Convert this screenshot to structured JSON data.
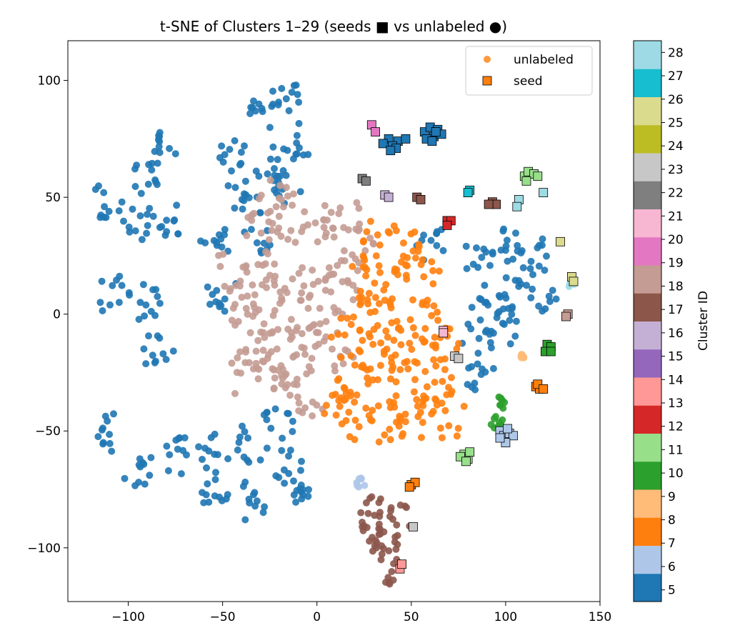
{
  "chart_data": {
    "type": "scatter",
    "title": "t-SNE of Clusters 1–29 (seeds ■ vs unlabeled ●)",
    "xlabel": "",
    "ylabel": "",
    "xlim": [
      -132,
      150
    ],
    "ylim": [
      -123,
      117
    ],
    "xticks": [
      -100,
      -50,
      0,
      50,
      100,
      150
    ],
    "xtick_labels": [
      "−100",
      "−50",
      "0",
      "50",
      "100",
      "150"
    ],
    "yticks": [
      -100,
      -50,
      0,
      50,
      100
    ],
    "ytick_labels": [
      "−100",
      "−50",
      "0",
      "50",
      "100"
    ],
    "grid": false,
    "legend": {
      "placement": "top-right",
      "entries": [
        {
          "label": "unlabeled",
          "marker": "circle",
          "color": "#ff7f0e"
        },
        {
          "label": "seed",
          "marker": "square",
          "color": "#ff7f0e"
        }
      ]
    },
    "colorbar": {
      "label": "Cluster ID",
      "vmin": 4.5,
      "vmax": 28.5,
      "ticks": [
        5,
        6,
        7,
        8,
        9,
        10,
        11,
        12,
        13,
        14,
        15,
        16,
        17,
        18,
        19,
        20,
        21,
        22,
        23,
        24,
        25,
        26,
        27,
        28
      ],
      "tick_labels": [
        "5",
        "6",
        "7",
        "8",
        "9",
        "10",
        "11",
        "12",
        "13",
        "14",
        "15",
        "16",
        "17",
        "18",
        "19",
        "20",
        "21",
        "22",
        "23",
        "24",
        "25",
        "26",
        "27",
        "28"
      ],
      "colors": [
        "#1f77b4",
        "#aec7e8",
        "#ff7f0e",
        "#ffbb78",
        "#2ca02c",
        "#98df8a",
        "#d62728",
        "#ff9896",
        "#9467bd",
        "#c5b0d5",
        "#8c564b",
        "#c49c94",
        "#e377c2",
        "#f7b6d2",
        "#7f7f7f",
        "#c7c7c7",
        "#bcbd22",
        "#dbdb8d",
        "#17becf",
        "#9edae5"
      ],
      "breaks": [
        4.5,
        5.7,
        6.9,
        8.1,
        9.3,
        10.5,
        11.7,
        12.9,
        14.1,
        15.3,
        16.5,
        17.7,
        18.9,
        20.1,
        21.3,
        22.5,
        23.7,
        24.9,
        26.1,
        27.3,
        28.5
      ]
    },
    "unlabeled_groups": [
      {
        "color": "#1f77b4",
        "spread": 9,
        "centers": [
          [
            -112,
            48
          ],
          [
            -92,
            60
          ],
          [
            -80,
            72
          ],
          [
            -95,
            40
          ],
          [
            -80,
            40
          ],
          [
            -108,
            8
          ],
          [
            -92,
            5
          ],
          [
            -85,
            -15
          ],
          [
            -110,
            -50
          ],
          [
            -95,
            -65
          ],
          [
            -75,
            -60
          ],
          [
            -55,
            -60
          ],
          [
            -35,
            -55
          ],
          [
            -55,
            -75
          ],
          [
            -35,
            -80
          ],
          [
            -15,
            -65
          ],
          [
            -10,
            -72
          ],
          [
            -55,
            30
          ],
          [
            -50,
            10
          ],
          [
            -40,
            50
          ],
          [
            -30,
            35
          ],
          [
            -25,
            65
          ],
          [
            -15,
            55
          ],
          [
            -30,
            85
          ],
          [
            -15,
            95
          ],
          [
            -10,
            75
          ],
          [
            -45,
            70
          ],
          [
            -20,
            -45
          ],
          [
            85,
            25
          ],
          [
            100,
            30
          ],
          [
            115,
            25
          ],
          [
            90,
            5
          ],
          [
            105,
            10
          ],
          [
            120,
            10
          ],
          [
            85,
            -10
          ],
          [
            100,
            -5
          ],
          [
            85,
            -25
          ],
          [
            60,
            30
          ]
        ]
      },
      {
        "color": "#c49c94",
        "spread": 10,
        "centers": [
          [
            -45,
            20
          ],
          [
            -30,
            20
          ],
          [
            -15,
            15
          ],
          [
            0,
            15
          ],
          [
            15,
            15
          ],
          [
            -40,
            5
          ],
          [
            -25,
            0
          ],
          [
            -10,
            0
          ],
          [
            5,
            0
          ],
          [
            -35,
            -10
          ],
          [
            -20,
            -15
          ],
          [
            -5,
            -15
          ],
          [
            10,
            -15
          ],
          [
            -25,
            -25
          ],
          [
            -10,
            -30
          ],
          [
            -30,
            40
          ],
          [
            -15,
            40
          ],
          [
            0,
            40
          ],
          [
            15,
            40
          ],
          [
            -5,
            -35
          ],
          [
            -40,
            -25
          ],
          [
            20,
            30
          ],
          [
            -20,
            50
          ]
        ]
      },
      {
        "color": "#ff7f0e",
        "spread": 10,
        "centers": [
          [
            30,
            30
          ],
          [
            45,
            30
          ],
          [
            55,
            20
          ],
          [
            25,
            15
          ],
          [
            40,
            15
          ],
          [
            25,
            0
          ],
          [
            40,
            0
          ],
          [
            55,
            0
          ],
          [
            15,
            -10
          ],
          [
            30,
            -15
          ],
          [
            45,
            -15
          ],
          [
            60,
            -15
          ],
          [
            20,
            -30
          ],
          [
            35,
            -30
          ],
          [
            50,
            -30
          ],
          [
            65,
            -30
          ],
          [
            20,
            -45
          ],
          [
            35,
            -45
          ],
          [
            50,
            -45
          ],
          [
            70,
            -45
          ],
          [
            10,
            -35
          ],
          [
            70,
            -15
          ]
        ]
      },
      {
        "color": "#8c564b",
        "spread": 8,
        "centers": [
          [
            28,
            -92
          ],
          [
            35,
            -98
          ],
          [
            40,
            -108
          ],
          [
            30,
            -85
          ],
          [
            42,
            -88
          ]
        ]
      },
      {
        "color": "#aec7e8",
        "spread": 3,
        "centers": [
          [
            24,
            -72
          ]
        ]
      },
      {
        "color": "#2ca02c",
        "spread": 4,
        "centers": [
          [
            95,
            -45
          ],
          [
            97,
            -38
          ]
        ]
      },
      {
        "color": "#9edae5",
        "spread": 2,
        "centers": [
          [
            135,
            13
          ]
        ]
      },
      {
        "color": "#ffbb78",
        "spread": 1,
        "centers": [
          [
            109,
            -18
          ]
        ]
      }
    ],
    "seeds": [
      {
        "color": "#1f77b4",
        "points": [
          [
            38,
            75
          ],
          [
            43,
            74
          ],
          [
            35,
            73
          ],
          [
            40,
            72
          ],
          [
            42,
            71
          ],
          [
            39,
            70
          ],
          [
            47,
            75
          ],
          [
            57,
            78
          ],
          [
            60,
            80
          ],
          [
            64,
            79
          ],
          [
            62,
            76
          ],
          [
            58,
            75
          ],
          [
            66,
            77
          ],
          [
            61,
            74
          ],
          [
            63,
            78
          ]
        ]
      },
      {
        "color": "#e377c2",
        "points": [
          [
            29,
            81
          ],
          [
            31,
            78
          ]
        ]
      },
      {
        "color": "#7f7f7f",
        "points": [
          [
            24,
            58
          ],
          [
            26,
            57
          ]
        ]
      },
      {
        "color": "#c5b0d5",
        "points": [
          [
            36,
            51
          ],
          [
            38,
            50
          ]
        ]
      },
      {
        "color": "#8c564b",
        "points": [
          [
            53,
            50
          ],
          [
            55,
            49
          ],
          [
            93,
            48
          ],
          [
            95,
            47
          ],
          [
            91,
            47
          ]
        ]
      },
      {
        "color": "#17becf",
        "points": [
          [
            81,
            53
          ],
          [
            80,
            52
          ]
        ]
      },
      {
        "color": "#9edae5",
        "points": [
          [
            107,
            49
          ],
          [
            106,
            46
          ],
          [
            120,
            52
          ]
        ]
      },
      {
        "color": "#98df8a",
        "points": [
          [
            110,
            59
          ],
          [
            112,
            61
          ],
          [
            115,
            60
          ],
          [
            111,
            57
          ],
          [
            117,
            59
          ],
          [
            78,
            -60
          ],
          [
            80,
            -62
          ],
          [
            76,
            -61
          ],
          [
            81,
            -59
          ],
          [
            79,
            -63
          ]
        ]
      },
      {
        "color": "#d62728",
        "points": [
          [
            69,
            40
          ],
          [
            71,
            40
          ],
          [
            69,
            38
          ]
        ]
      },
      {
        "color": "#dbdb8d",
        "points": [
          [
            129,
            31
          ],
          [
            135,
            16
          ],
          [
            136,
            14
          ]
        ]
      },
      {
        "color": "#c49c94",
        "points": [
          [
            133,
            0
          ],
          [
            132,
            -1
          ]
        ]
      },
      {
        "color": "#f7b6d2",
        "points": [
          [
            67,
            -7
          ],
          [
            67,
            -8
          ]
        ]
      },
      {
        "color": "#c7c7c7",
        "points": [
          [
            73,
            -18
          ],
          [
            75,
            -19
          ],
          [
            51,
            -91
          ]
        ]
      },
      {
        "color": "#2ca02c",
        "points": [
          [
            122,
            -13
          ],
          [
            124,
            -14
          ],
          [
            121,
            -16
          ],
          [
            124,
            -16
          ]
        ]
      },
      {
        "color": "#ff7f0e",
        "points": [
          [
            116,
            -31
          ],
          [
            118,
            -32
          ],
          [
            117,
            -30
          ],
          [
            120,
            -32
          ],
          [
            50,
            -73
          ],
          [
            52,
            -72
          ],
          [
            49,
            -74
          ]
        ]
      },
      {
        "color": "#aec7e8",
        "points": [
          [
            97,
            -50
          ],
          [
            99,
            -52
          ],
          [
            102,
            -51
          ],
          [
            104,
            -52
          ],
          [
            100,
            -55
          ],
          [
            97,
            -53
          ],
          [
            101,
            -49
          ]
        ]
      },
      {
        "color": "#ff9896",
        "points": [
          [
            44,
            -109
          ],
          [
            45,
            -107
          ]
        ]
      }
    ]
  }
}
